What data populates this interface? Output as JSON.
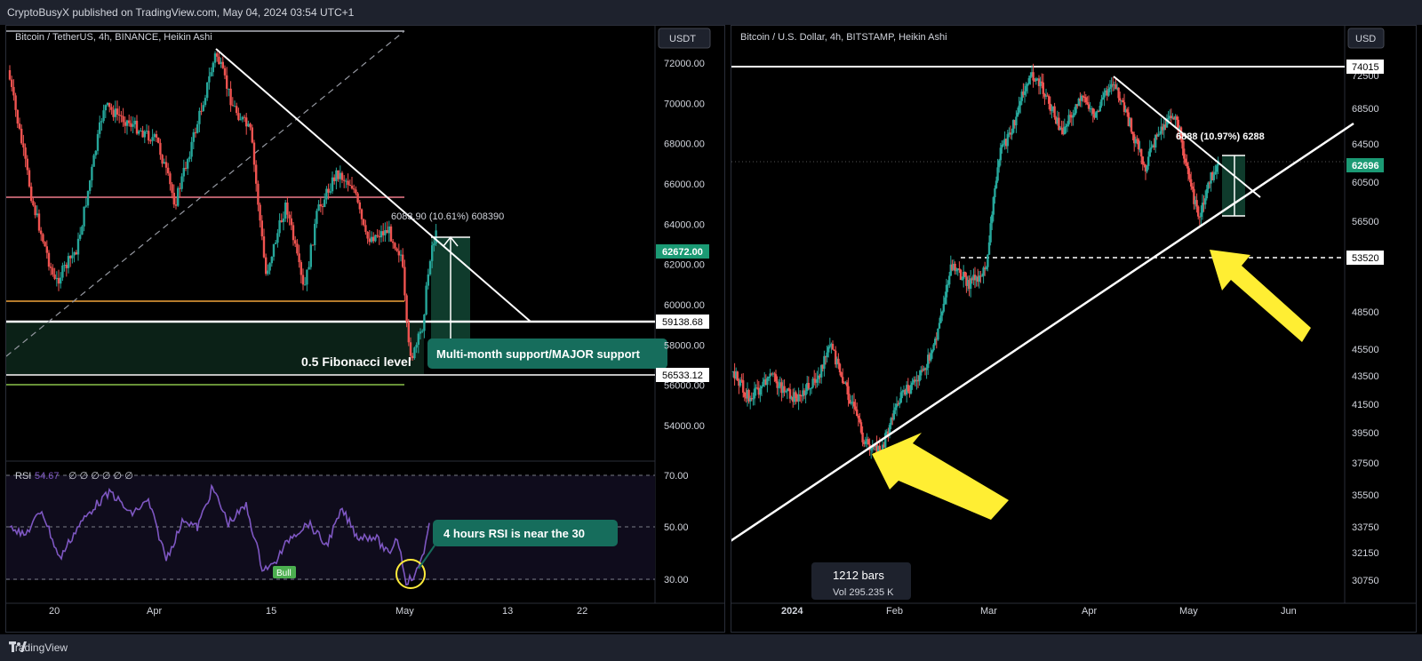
{
  "header": {
    "publisher": "CryptoBusyX published on TradingView.com, May 04, 2024 03:54 UTC+1"
  },
  "footer": {
    "brand": "TradingView"
  },
  "left_chart": {
    "title": "Bitcoin / TetherUS, 4h, BINANCE, Heikin Ashi",
    "currency": "USDT",
    "price_ticks": [
      "72000.00",
      "70000.00",
      "68000.00",
      "66000.00",
      "64000.00",
      "62000.00",
      "60000.00",
      "58000.00",
      "56000.00",
      "54000.00"
    ],
    "price_tick_values": [
      72000,
      70000,
      68000,
      66000,
      64000,
      62000,
      60000,
      58000,
      56000,
      54000
    ],
    "date_ticks": [
      "20",
      "Apr",
      "15",
      "Bull",
      "May",
      "13",
      "22"
    ],
    "date_tick_labels": [
      "20",
      "Apr",
      "15",
      "May",
      "13",
      "22"
    ],
    "last_price": "62672.00",
    "level_1": "59138.68",
    "level_2": "56533.12",
    "measure": "6083.90 (10.61%) 608390",
    "annotation_fib": "0.5 Fibonacci level",
    "annotation_support": "Multi-month support/MAJOR support",
    "rsi": {
      "label": "RSI",
      "value": "54.67",
      "placeholders": "∅ ∅ ∅ ∅ ∅ ∅",
      "ticks": [
        "70.00",
        "50.00",
        "30.00"
      ],
      "bull_label": "Bull",
      "annotation": "4 hours RSI is near the 30"
    }
  },
  "right_chart": {
    "title": "Bitcoin / U.S. Dollar, 4h, BITSTAMP, Heikin Ashi",
    "currency": "USD",
    "price_ticks": [
      "72500",
      "68500",
      "64500",
      "60500",
      "56500",
      "52500",
      "48500",
      "45500",
      "43500",
      "41500",
      "39500",
      "37500",
      "35500",
      "33750",
      "32150",
      "30750"
    ],
    "date_ticks": [
      "2024",
      "Feb",
      "Mar",
      "Apr",
      "May",
      "Jun"
    ],
    "top_level": "74015",
    "last_price": "62696",
    "dashed_level": "53520",
    "measure": "6888 (10.97%) 6288",
    "bars_label": "1212 bars",
    "vol_label": "Vol 295.235 K"
  },
  "chart_data": [
    {
      "type": "candlestick",
      "title": "Bitcoin / TetherUS, 4h, BINANCE, Heikin Ashi",
      "x_labels": [
        "20",
        "Apr",
        "15",
        "May",
        "13",
        "22"
      ],
      "ylim": [
        53000,
        73000
      ],
      "horizontal_levels": [
        59138.68,
        56533.12,
        65300,
        60100,
        55900
      ],
      "last_price": 62672.0,
      "path_approx": [
        {
          "x": "Mar 14",
          "y": 71000
        },
        {
          "x": "Mar 20",
          "y": 63000
        },
        {
          "x": "Mar 27",
          "y": 70000
        },
        {
          "x": "Apr 01",
          "y": 67000
        },
        {
          "x": "Apr 08",
          "y": 72000
        },
        {
          "x": "Apr 13",
          "y": 64000
        },
        {
          "x": "Apr 17",
          "y": 61000
        },
        {
          "x": "Apr 23",
          "y": 66500
        },
        {
          "x": "Apr 30",
          "y": 58000
        },
        {
          "x": "May 01",
          "y": 57000
        },
        {
          "x": "May 04",
          "y": 62672
        }
      ]
    },
    {
      "type": "line",
      "title": "RSI",
      "ylim": [
        20,
        75
      ],
      "ticks": [
        70,
        50,
        30
      ],
      "last_value": 54.67
    },
    {
      "type": "candlestick",
      "title": "Bitcoin / U.S. Dollar, 4h, BITSTAMP, Heikin Ashi",
      "x_labels": [
        "2024",
        "Feb",
        "Mar",
        "Apr",
        "May",
        "Jun"
      ],
      "scale": "log",
      "ylim": [
        30000,
        75000
      ],
      "horizontal_levels": [
        74015,
        53520
      ],
      "last_price": 62696,
      "path_approx": [
        {
          "x": "Dec 15",
          "y": 42500
        },
        {
          "x": "Jan 01",
          "y": 44000
        },
        {
          "x": "Jan 11",
          "y": 47500
        },
        {
          "x": "Jan 23",
          "y": 39000
        },
        {
          "x": "Feb 10",
          "y": 47500
        },
        {
          "x": "Feb 20",
          "y": 51500
        },
        {
          "x": "Mar 01",
          "y": 62000
        },
        {
          "x": "Mar 14",
          "y": 73000
        },
        {
          "x": "Mar 20",
          "y": 64000
        },
        {
          "x": "Apr 08",
          "y": 72000
        },
        {
          "x": "Apr 17",
          "y": 61000
        },
        {
          "x": "Apr 25",
          "y": 66000
        },
        {
          "x": "May 01",
          "y": 57000
        },
        {
          "x": "May 04",
          "y": 62696
        }
      ]
    }
  ]
}
